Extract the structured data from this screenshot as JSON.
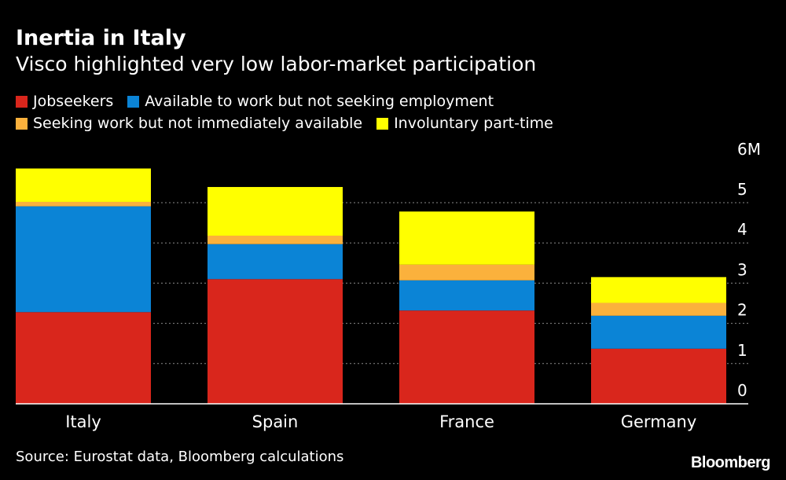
{
  "header": {
    "title": "Inertia in Italy",
    "subtitle": "Visco highlighted very low labor-market participation"
  },
  "footer": {
    "source": "Source: Eurostat data, Bloomberg calculations",
    "brand": "Bloomberg"
  },
  "chart_data": {
    "type": "bar",
    "stacked": true,
    "title": "Inertia in Italy",
    "subtitle": "Visco highlighted very low labor-market participation",
    "categories": [
      "Italy",
      "Spain",
      "France",
      "Germany"
    ],
    "series": [
      {
        "name": "Jobseekers",
        "color": "#d9261c",
        "values": [
          2.28,
          3.1,
          2.32,
          1.37
        ]
      },
      {
        "name": "Available to work but not seeking employment",
        "color": "#0b84d6",
        "values": [
          2.63,
          0.87,
          0.75,
          0.82
        ]
      },
      {
        "name": "Seeking work but not immediately available",
        "color": "#fbb13c",
        "values": [
          0.11,
          0.21,
          0.39,
          0.32
        ]
      },
      {
        "name": "Involuntary part-time",
        "color": "#ffff00",
        "values": [
          0.83,
          1.21,
          1.32,
          0.64
        ]
      }
    ],
    "y_ticks": [
      {
        "value": 0,
        "label": "0"
      },
      {
        "value": 1,
        "label": "1"
      },
      {
        "value": 2,
        "label": "2"
      },
      {
        "value": 3,
        "label": "3"
      },
      {
        "value": 4,
        "label": "4"
      },
      {
        "value": 5,
        "label": "5"
      },
      {
        "value": 6,
        "label": "6M"
      }
    ],
    "ylim": [
      0,
      6
    ],
    "grid": true,
    "y_axis_position": "right",
    "legend_position": "top-left"
  }
}
